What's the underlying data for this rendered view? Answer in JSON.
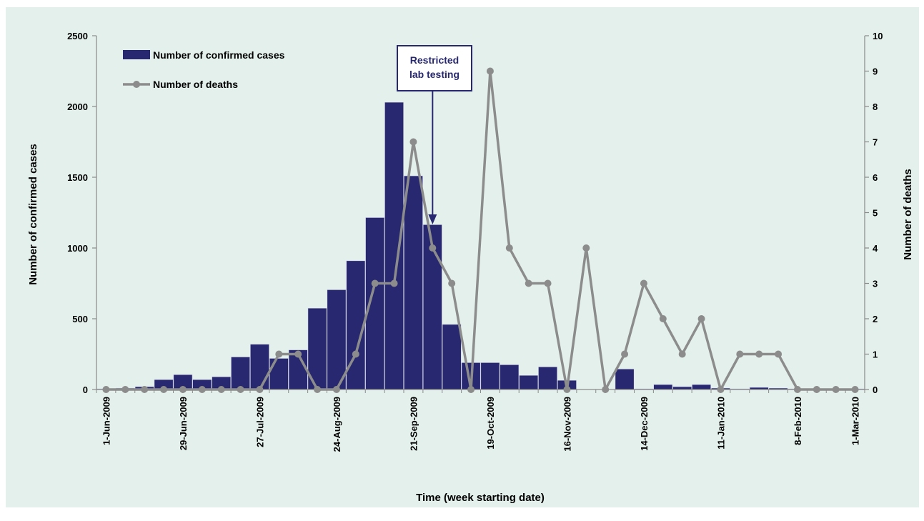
{
  "chart_data": {
    "type": "bar+line",
    "xlabel": "Time (week starting date)",
    "ylabel_left": "Number of confirmed cases",
    "ylabel_right": "Number of deaths",
    "ylim_left": [
      0,
      2500
    ],
    "ylim_right": [
      0,
      10
    ],
    "yticks_left": [
      "0",
      "500",
      "1000",
      "1500",
      "2000",
      "2500"
    ],
    "yticks_right": [
      "0",
      "1",
      "2",
      "3",
      "4",
      "5",
      "6",
      "7",
      "8",
      "9",
      "10"
    ],
    "x_tick_labels": [
      "1-Jun-2009",
      "29-Jun-2009",
      "27-Jul-2009",
      "24-Aug-2009",
      "21-Sep-2009",
      "19-Oct-2009",
      "16-Nov-2009",
      "14-Dec-2009",
      "11-Jan-2010",
      "8-Feb-2010",
      "1-Mar-2010"
    ],
    "x_tick_week_index": [
      0,
      4,
      8,
      12,
      16,
      20,
      24,
      28,
      32,
      36,
      39
    ],
    "series": [
      {
        "name": "Number of confirmed cases",
        "type": "bar",
        "color": "#27286f",
        "values": [
          5,
          10,
          20,
          70,
          105,
          70,
          90,
          230,
          320,
          220,
          280,
          575,
          705,
          910,
          1215,
          2030,
          1510,
          1165,
          460,
          190,
          190,
          175,
          100,
          160,
          65,
          0,
          0,
          145,
          5,
          35,
          20,
          35,
          10,
          5,
          15,
          10,
          5,
          5,
          5,
          5
        ]
      },
      {
        "name": "Number of deaths",
        "type": "line",
        "color": "#8c8c8c",
        "values": [
          0,
          0,
          0,
          0,
          0,
          0,
          0,
          0,
          0,
          1,
          1,
          0,
          0,
          1,
          3,
          3,
          7,
          4,
          3,
          0,
          9,
          4,
          3,
          3,
          0,
          4,
          0,
          1,
          3,
          2,
          1,
          2,
          0,
          1,
          1,
          1,
          0,
          0,
          0,
          0
        ]
      }
    ],
    "annotation": {
      "lines": [
        "Restricted",
        "lab testing"
      ],
      "week_index": 17,
      "color": "#27286f"
    },
    "legend_position": "top-left",
    "grid": false,
    "background": "#e3f0ec"
  }
}
